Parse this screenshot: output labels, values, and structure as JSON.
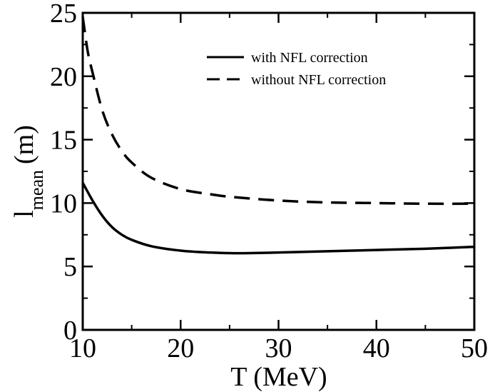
{
  "chart_data": {
    "type": "line",
    "xlabel": "T (MeV)",
    "ylabel_main": "l",
    "ylabel_sub": "mean",
    "ylabel_unit": "(m)",
    "xlim": [
      10,
      50
    ],
    "ylim": [
      0,
      25
    ],
    "xticks": [
      10,
      20,
      30,
      40,
      50
    ],
    "yticks": [
      0,
      5,
      10,
      15,
      20,
      25
    ],
    "grid": false,
    "legend_position": "top-right",
    "series": [
      {
        "name": "with NFL correction",
        "style": "solid",
        "color": "#000000",
        "x": [
          10,
          11,
          12,
          13,
          14,
          15,
          17,
          20,
          23,
          25,
          27,
          30,
          35,
          40,
          45,
          50
        ],
        "y": [
          11.6,
          10.2,
          9.0,
          8.1,
          7.5,
          7.1,
          6.6,
          6.25,
          6.1,
          6.05,
          6.05,
          6.1,
          6.2,
          6.3,
          6.4,
          6.55
        ]
      },
      {
        "name": "without NFL correction",
        "style": "dashed",
        "color": "#000000",
        "x": [
          10,
          10.5,
          11,
          12,
          13,
          14,
          15,
          17,
          20,
          23,
          25,
          30,
          35,
          40,
          45,
          50
        ],
        "y": [
          24.7,
          22.0,
          20.3,
          17.3,
          15.4,
          14.1,
          13.2,
          12.0,
          11.1,
          10.7,
          10.5,
          10.2,
          10.05,
          10.0,
          9.95,
          9.95
        ]
      }
    ]
  }
}
